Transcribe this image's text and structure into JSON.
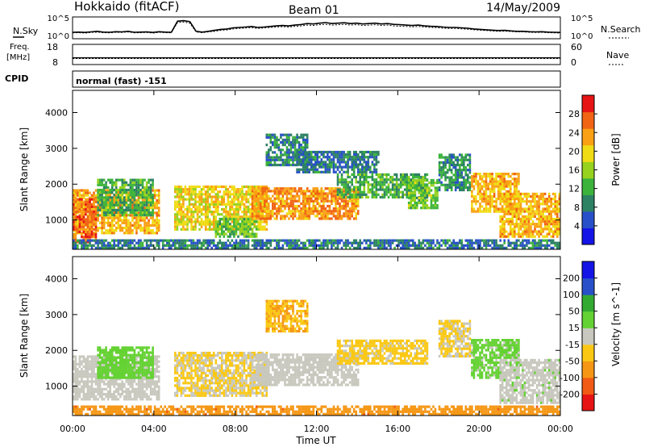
{
  "header": {
    "station": "Hokkaido (fitACF)",
    "beam": "Beam 01",
    "date": "14/May/2009"
  },
  "noise_panel": {
    "left_label": "N.Sky",
    "right_label": "N.Search",
    "left_ticks": [
      "10^5",
      "10^0"
    ],
    "right_ticks": [
      "10^5",
      "10^0"
    ],
    "sky_level": [
      0.25,
      0.26,
      0.24,
      0.27,
      0.3,
      0.26,
      0.25,
      0.28,
      0.27,
      0.3,
      0.25,
      0.26,
      0.27,
      0.24,
      0.28,
      0.26,
      0.25,
      0.82,
      0.85,
      0.8,
      0.3,
      0.26,
      0.3,
      0.35,
      0.4,
      0.42,
      0.48,
      0.5,
      0.52,
      0.55,
      0.5,
      0.52,
      0.55,
      0.58,
      0.6,
      0.58,
      0.62,
      0.65,
      0.7,
      0.68,
      0.72,
      0.75,
      0.7,
      0.72,
      0.74,
      0.7,
      0.72,
      0.68,
      0.7,
      0.72,
      0.68,
      0.7,
      0.66,
      0.64,
      0.62,
      0.6,
      0.62,
      0.58,
      0.56,
      0.55,
      0.52,
      0.5,
      0.5,
      0.48,
      0.46,
      0.42,
      0.4,
      0.38,
      0.36,
      0.34,
      0.35,
      0.32,
      0.3,
      0.3,
      0.28,
      0.27,
      0.28,
      0.26,
      0.25,
      0.24
    ],
    "search_level": [
      0.22,
      0.23,
      0.21,
      0.24,
      0.26,
      0.23,
      0.22,
      0.25,
      0.24,
      0.27,
      0.22,
      0.23,
      0.24,
      0.21,
      0.25,
      0.23,
      0.22,
      0.75,
      0.78,
      0.72,
      0.27,
      0.23,
      0.27,
      0.3,
      0.35,
      0.37,
      0.42,
      0.45,
      0.47,
      0.49,
      0.45,
      0.47,
      0.5,
      0.52,
      0.54,
      0.52,
      0.56,
      0.58,
      0.62,
      0.6,
      0.64,
      0.66,
      0.62,
      0.64,
      0.66,
      0.62,
      0.64,
      0.6,
      0.62,
      0.64,
      0.6,
      0.62,
      0.58,
      0.56,
      0.55,
      0.53,
      0.55,
      0.52,
      0.5,
      0.49,
      0.46,
      0.45,
      0.45,
      0.43,
      0.41,
      0.38,
      0.36,
      0.34,
      0.32,
      0.3,
      0.31,
      0.29,
      0.27,
      0.27,
      0.25,
      0.24,
      0.25,
      0.23,
      0.22,
      0.21
    ]
  },
  "freq_panel": {
    "label_top": "Freq.",
    "label_bottom": "[MHz]",
    "right_label": "Nave",
    "left_ticks": [
      "18",
      "8"
    ],
    "right_ticks": [
      "60",
      "0"
    ],
    "freq_mhz": 11.0,
    "nave": 20
  },
  "cpid": {
    "label": "CPID",
    "value": "normal (fast) -151"
  },
  "colors": {
    "power_scale": [
      "#1414e6",
      "#2850c8",
      "#2d8264",
      "#3cb43c",
      "#96d21e",
      "#f0dc14",
      "#faa014",
      "#f06414",
      "#e61414"
    ],
    "velocity_scale": [
      "#e61414",
      "#f05a14",
      "#f59614",
      "#fac814",
      "#c8c8be",
      "#64d232",
      "#32aa32",
      "#2850c8",
      "#1414e6"
    ]
  },
  "chart_data": [
    {
      "type": "heatmap",
      "name": "power",
      "x_range_hours": [
        0,
        24
      ],
      "ylim_km": [
        180,
        4620
      ],
      "ylabel": "Slant Range [km]",
      "yticks": [
        1000,
        2000,
        3000,
        4000
      ],
      "colorbar": {
        "label": "Power [dB]",
        "ticks": [
          4,
          8,
          12,
          16,
          20,
          24,
          28
        ],
        "range": [
          0,
          32
        ]
      },
      "bands": [
        {
          "t0": 0.0,
          "t1": 4.3,
          "r0": 600,
          "r1": 1800,
          "val": 22
        },
        {
          "t0": 0.0,
          "t1": 1.2,
          "r0": 350,
          "r1": 1600,
          "val": 26
        },
        {
          "t0": 1.2,
          "t1": 4.0,
          "r0": 1100,
          "r1": 2100,
          "val": 12
        },
        {
          "t0": 5.0,
          "t1": 9.5,
          "r0": 700,
          "r1": 1900,
          "val": 20
        },
        {
          "t0": 7.0,
          "t1": 9.0,
          "r0": 500,
          "r1": 1000,
          "val": 14
        },
        {
          "t0": 8.8,
          "t1": 14.0,
          "r0": 1000,
          "r1": 1900,
          "val": 24
        },
        {
          "t0": 9.5,
          "t1": 11.5,
          "r0": 2500,
          "r1": 3400,
          "val": 9
        },
        {
          "t0": 11.0,
          "t1": 15.0,
          "r0": 2300,
          "r1": 2900,
          "val": 8
        },
        {
          "t0": 13.0,
          "t1": 17.5,
          "r0": 1600,
          "r1": 2300,
          "val": 12
        },
        {
          "t0": 16.5,
          "t1": 18.0,
          "r0": 1300,
          "r1": 2100,
          "val": 14
        },
        {
          "t0": 18.0,
          "t1": 19.6,
          "r0": 1800,
          "r1": 2800,
          "val": 10
        },
        {
          "t0": 19.6,
          "t1": 22.0,
          "r0": 1200,
          "r1": 2300,
          "val": 22
        },
        {
          "t0": 21.0,
          "t1": 24.0,
          "r0": 500,
          "r1": 1700,
          "val": 22
        },
        {
          "t0": 0.0,
          "t1": 24.0,
          "r0": 180,
          "r1": 400,
          "val": 8
        }
      ]
    },
    {
      "type": "heatmap",
      "name": "velocity",
      "x_range_hours": [
        0,
        24
      ],
      "ylim_km": [
        180,
        4620
      ],
      "xlabel": "Time UT",
      "xticks": [
        "00:00",
        "04:00",
        "08:00",
        "12:00",
        "16:00",
        "20:00",
        "00:00"
      ],
      "ylabel": "Slant Range [km]",
      "yticks": [
        1000,
        2000,
        3000,
        4000
      ],
      "colorbar": {
        "label": "Velocity [m s^-1]",
        "ticks": [
          -200,
          -100,
          -50,
          -15,
          15,
          50,
          100,
          200
        ],
        "range": [
          -250,
          250
        ]
      },
      "bands": [
        {
          "t0": 0.0,
          "t1": 4.3,
          "r0": 600,
          "r1": 1800,
          "val": 0
        },
        {
          "t0": 1.2,
          "t1": 4.0,
          "r0": 1200,
          "r1": 2100,
          "val": 60
        },
        {
          "t0": 5.0,
          "t1": 9.5,
          "r0": 700,
          "r1": 1900,
          "val": -30
        },
        {
          "t0": 8.8,
          "t1": 14.0,
          "r0": 1000,
          "r1": 1900,
          "val": 5
        },
        {
          "t0": 9.5,
          "t1": 11.5,
          "r0": 2500,
          "r1": 3400,
          "val": -80
        },
        {
          "t0": 13.0,
          "t1": 17.5,
          "r0": 1600,
          "r1": 2300,
          "val": -40
        },
        {
          "t0": 18.0,
          "t1": 19.6,
          "r0": 1800,
          "r1": 2800,
          "val": -30
        },
        {
          "t0": 19.6,
          "t1": 22.0,
          "r0": 1200,
          "r1": 2300,
          "val": 40
        },
        {
          "t0": 21.0,
          "t1": 24.0,
          "r0": 500,
          "r1": 1700,
          "val": 10
        },
        {
          "t0": 0.0,
          "t1": 24.0,
          "r0": 180,
          "r1": 400,
          "val": -120
        }
      ]
    }
  ]
}
